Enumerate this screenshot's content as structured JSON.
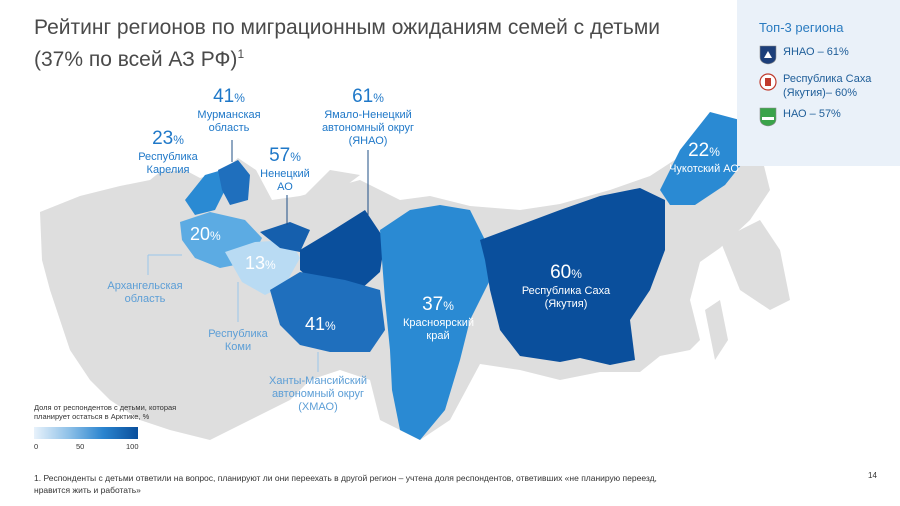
{
  "title": "Рейтинг регионов по миграционным ожиданиям семей с детьми (37% по всей АЗ РФ)",
  "title_sup": "1",
  "top3": {
    "title": "Топ-3 региона",
    "items": [
      {
        "label": "ЯНАО – 61%"
      },
      {
        "label": "Республика Саха (Якутия)– 60%"
      },
      {
        "label": "НАО – 57%"
      }
    ]
  },
  "regions": {
    "murmansk": {
      "value": "41",
      "unit": "%",
      "name": "Мурманская область"
    },
    "karelia": {
      "value": "23",
      "unit": "%",
      "name": "Республика Карелия"
    },
    "nenets": {
      "value": "57",
      "unit": "%",
      "name": "Ненецкий АО"
    },
    "yamal": {
      "value": "61",
      "unit": "%",
      "name": "Ямало-Ненецкий автономный округ (ЯНАО)"
    },
    "chukotka": {
      "value": "22",
      "unit": "%",
      "name": "Чукотский АО"
    },
    "arkhangelsk": {
      "value": "20",
      "unit": "%",
      "name": "Архангельская область"
    },
    "komi": {
      "value": "13",
      "unit": "%",
      "name": "Республика Коми"
    },
    "khanty": {
      "value": "41",
      "unit": "%",
      "name": "Ханты-Мансийский автономный округ (ХМАО)"
    },
    "krasnoyarsk": {
      "value": "37",
      "unit": "%",
      "name": "Красноярский край"
    },
    "sakha": {
      "value": "60",
      "unit": "%",
      "name": "Республика Саха (Якутия)"
    }
  },
  "colors": {
    "very_dark": "#0a4f9c",
    "dark": "#155fad",
    "mid_dark": "#1f6fbd",
    "mid": "#2a8ad3",
    "light": "#5cabe3",
    "lighter": "#8fc4ea",
    "very_light": "#b9dbf3",
    "background_russia": "#dedede"
  },
  "legend": {
    "text": "Доля от респондентов с детьми, которая планирует остаться в Арктике, %",
    "min": "0",
    "mid": "50",
    "max": "100"
  },
  "footnote": "1. Респонденты с детьми ответили на вопрос, планируют ли они переехать в другой регион – учтена доля респондентов, ответивших «не планирую переезд, нравится жить и работать»",
  "page_number": "14"
}
